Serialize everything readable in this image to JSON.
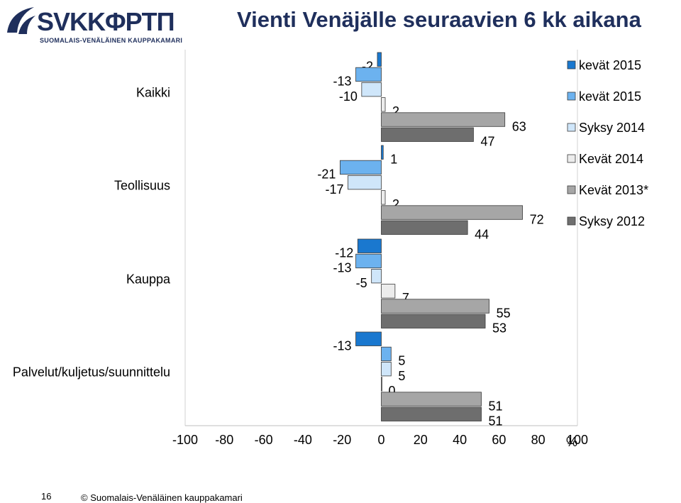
{
  "header": {
    "logo_text": "SVKKΦPTΠ",
    "logo_sub": "SUOMALAIS-VENÄLÄINEN KAUPPAKAMARI",
    "title": "Vienti Venäjälle seuraavien 6 kk aikana"
  },
  "footer": {
    "page_number": "16",
    "copyright": "© Suomalais-Venäläinen kauppakamari"
  },
  "chart_data": {
    "type": "bar",
    "orientation": "horizontal",
    "categories": [
      "Kaikki",
      "Teollisuus",
      "Kauppa",
      "Palvelut/kuljetus/suunnittelu"
    ],
    "series": [
      {
        "name": "kevät 2015",
        "color": "#1a78cf",
        "values": [
          -2,
          1,
          -12,
          -13
        ]
      },
      {
        "name": "kevät 2015",
        "color": "#6cb2ef",
        "values": [
          -13,
          -21,
          -13,
          5
        ]
      },
      {
        "name": "Syksy 2014",
        "color": "#cfe6fa",
        "values": [
          -10,
          -17,
          -5,
          5
        ]
      },
      {
        "name": "Kevät 2014",
        "color": "#ececec",
        "values": [
          2,
          2,
          7,
          0
        ]
      },
      {
        "name": "Kevät 2013*",
        "color": "#a6a6a6",
        "values": [
          63,
          72,
          55,
          51
        ]
      },
      {
        "name": "Syksy 2012",
        "color": "#6e6e6e",
        "values": [
          47,
          44,
          53,
          51
        ]
      }
    ],
    "xlim": [
      -100,
      100
    ],
    "xticks": [
      "-100",
      "-80",
      "-60",
      "-40",
      "-20",
      "0",
      "20",
      "40",
      "60",
      "80",
      "100"
    ],
    "xunit": "%",
    "legend_position": "right",
    "grid": false
  }
}
